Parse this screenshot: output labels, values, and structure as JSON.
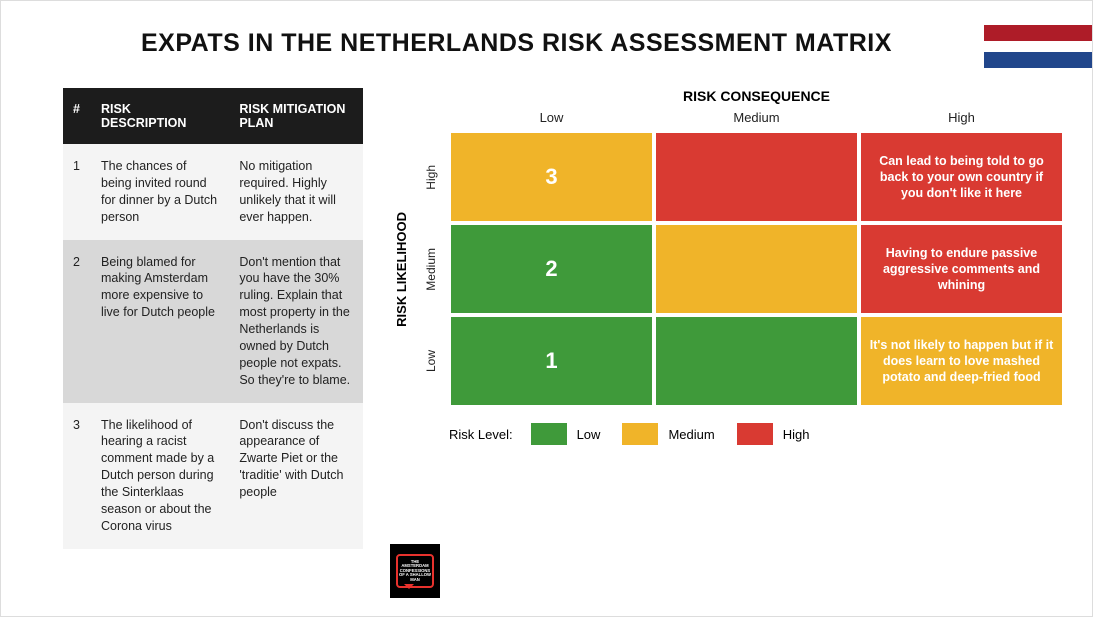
{
  "title": "EXPATS IN THE NETHERLANDS RISK ASSESSMENT MATRIX",
  "flag": {
    "top_color": "#ae1c28",
    "bottom_color": "#21468b"
  },
  "table": {
    "headers": {
      "num": "#",
      "desc": "RISK DESCRIPTION",
      "plan": "RISK MITIGATION PLAN"
    },
    "rows": [
      {
        "num": "1",
        "desc": "The chances of being invited round for dinner by a Dutch person",
        "plan": "No mitigation required. Highly unlikely that it will ever happen."
      },
      {
        "num": "2",
        "desc": "Being blamed for making Amsterdam more expensive to live for Dutch people",
        "plan": "Don't mention that you have the 30% ruling. Explain that most property in the Netherlands is owned by Dutch people not expats. So they're to blame."
      },
      {
        "num": "3",
        "desc": "The likelihood of hearing a racist comment made by a Dutch person during the Sinterklaas season or about the Corona virus",
        "plan": "Don't discuss the appearance of Zwarte Piet or the 'traditie' with Dutch people"
      }
    ]
  },
  "matrix": {
    "consequence_title": "RISK CONSEQUENCE",
    "likelihood_title": "RISK LIKELIHOOD",
    "col_labels": [
      "Low",
      "Medium",
      "High"
    ],
    "row_labels": [
      "High",
      "Medium",
      "Low"
    ],
    "colors": {
      "low": "#3f9a3a",
      "medium": "#f0b429",
      "high": "#d93a32"
    },
    "cells": [
      [
        {
          "level": "medium",
          "text": "3",
          "is_num": true
        },
        {
          "level": "high",
          "text": ""
        },
        {
          "level": "high",
          "text": "Can lead to being told to go back to your own country if you don't like it here"
        }
      ],
      [
        {
          "level": "low",
          "text": "2",
          "is_num": true
        },
        {
          "level": "medium",
          "text": ""
        },
        {
          "level": "high",
          "text": "Having to endure passive aggressive comments and whining"
        }
      ],
      [
        {
          "level": "low",
          "text": "1",
          "is_num": true
        },
        {
          "level": "low",
          "text": ""
        },
        {
          "level": "medium",
          "text": "It's not likely to happen but if it does learn to love mashed potato and deep-fried food"
        }
      ]
    ],
    "legend": {
      "title": "Risk Level:",
      "items": [
        {
          "label": "Low",
          "level": "low"
        },
        {
          "label": "Medium",
          "level": "medium"
        },
        {
          "label": "High",
          "level": "high"
        }
      ]
    }
  },
  "badge_text": "THE AMSTERDAM CONFESSIONS OF A SHALLOW MAN"
}
